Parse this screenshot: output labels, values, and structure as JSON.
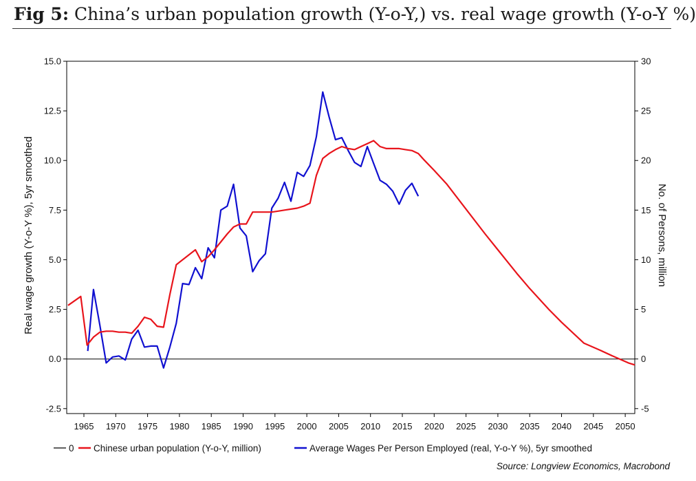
{
  "title": {
    "label": "Fig 5:",
    "text": "China’s urban population growth (Y-o-Y,) vs. real wage growth (Y-o-Y %)"
  },
  "source": "Source: Longview Economics, Macrobond",
  "chart_data": {
    "type": "line",
    "title": "Fig 5: China’s urban population growth (Y-o-Y,) vs. real wage growth (Y-o-Y %)",
    "ylabel_left": "Real wage growth (Y-o-Y %), 5yr smoothed",
    "ylabel_right": "No. of Persons, million",
    "xlim": [
      1962.3,
      2051.5
    ],
    "ylim_left": [
      -2.75,
      15.0
    ],
    "ylim_right": [
      -5.5,
      30.0
    ],
    "x_ticks": [
      "1965",
      "1970",
      "1975",
      "1980",
      "1985",
      "1990",
      "1995",
      "2000",
      "2005",
      "2010",
      "2015",
      "2020",
      "2025",
      "2030",
      "2035",
      "2040",
      "2045",
      "2050"
    ],
    "y_ticks_left": [
      "-2.5",
      "0.0",
      "2.5",
      "5.0",
      "7.5",
      "10.0",
      "12.5",
      "15.0"
    ],
    "y_ticks_right": [
      "-5",
      "0",
      "5",
      "10",
      "15",
      "20",
      "25",
      "30"
    ],
    "grid": false,
    "legend_position": "bottom",
    "legend": [
      {
        "label": "0",
        "color": "#000000"
      },
      {
        "label": "Chinese urban population (Y-o-Y, million)",
        "color": "#e8141b"
      },
      {
        "label": "Average Wages Per Person Employed (real, Y-o-Y %), 5yr smoothed",
        "color": "#1010d0"
      }
    ],
    "series": [
      {
        "name": "Chinese urban population (Y-o-Y, million)",
        "axis": "right",
        "color": "#e8141b",
        "x": [
          1962.5,
          1964.5,
          1965.5,
          1966.5,
          1967.5,
          1968.5,
          1969.5,
          1970.5,
          1971.5,
          1972.5,
          1973.5,
          1974.5,
          1975.5,
          1976.5,
          1977.5,
          1978.5,
          1979.5,
          1980.5,
          1981.5,
          1982.5,
          1983.5,
          1984.5,
          1985.5,
          1986.5,
          1987.5,
          1988.5,
          1989.5,
          1990.5,
          1991.5,
          1992.5,
          1993.5,
          1994.5,
          1995.5,
          1996.5,
          1997.5,
          1998.5,
          1999.5,
          2000.5,
          2001.5,
          2002.5,
          2003.5,
          2004.5,
          2005.5,
          2006.5,
          2007.5,
          2008.5,
          2009.5,
          2010.5,
          2011.5,
          2012.5,
          2013.5,
          2014.5,
          2015.5,
          2016.5,
          2017.5,
          2018.5,
          2020,
          2022,
          2025,
          2028,
          2030,
          2033,
          2035,
          2038,
          2040,
          2043.5,
          2046,
          2048,
          2050.5,
          2051.5
        ],
        "y": [
          5.4,
          6.3,
          1.4,
          2.2,
          2.7,
          2.8,
          2.8,
          2.7,
          2.7,
          2.6,
          3.3,
          4.2,
          4.0,
          3.3,
          3.2,
          6.5,
          9.5,
          10.0,
          10.5,
          11.0,
          9.8,
          10.3,
          11.0,
          11.8,
          12.6,
          13.3,
          13.6,
          13.6,
          14.8,
          14.8,
          14.8,
          14.8,
          14.9,
          15.0,
          15.1,
          15.2,
          15.4,
          15.7,
          18.5,
          20.2,
          20.7,
          21.1,
          21.4,
          21.2,
          21.1,
          21.4,
          21.7,
          22.0,
          21.4,
          21.2,
          21.2,
          21.2,
          21.1,
          21.0,
          20.7,
          20.0,
          19.0,
          17.6,
          15.1,
          12.6,
          11.0,
          8.6,
          7.1,
          5.0,
          3.7,
          1.6,
          0.9,
          0.3,
          -0.4,
          -0.6
        ]
      },
      {
        "name": "Average Wages Per Person Employed (real, Y-o-Y %), 5yr smoothed",
        "axis": "left",
        "color": "#1010d0",
        "x": [
          1965.6,
          1966.5,
          1967.5,
          1968.5,
          1969.5,
          1970.5,
          1971.5,
          1972.5,
          1973.5,
          1974.5,
          1975.5,
          1976.5,
          1977.5,
          1978.5,
          1979.5,
          1980.5,
          1981.5,
          1982.5,
          1983.5,
          1984.5,
          1985.5,
          1986.5,
          1987.5,
          1988.5,
          1989.5,
          1990.5,
          1991.5,
          1992.5,
          1993.5,
          1994.5,
          1995.5,
          1996.5,
          1997.5,
          1998.5,
          1999.5,
          2000.5,
          2001.5,
          2002.5,
          2003.5,
          2004.5,
          2005.5,
          2006.5,
          2007.5,
          2008.5,
          2009.5,
          2010.5,
          2011.5,
          2012.5,
          2013.5,
          2014.5,
          2015.5,
          2016.5,
          2017.5
        ],
        "y": [
          0.4,
          3.5,
          1.7,
          -0.2,
          0.1,
          0.15,
          -0.05,
          1.0,
          1.45,
          0.6,
          0.65,
          0.65,
          -0.45,
          0.6,
          1.8,
          3.8,
          3.75,
          4.6,
          4.05,
          5.6,
          5.1,
          7.5,
          7.7,
          8.8,
          6.6,
          6.2,
          4.4,
          4.95,
          5.3,
          7.6,
          8.1,
          8.9,
          7.95,
          9.4,
          9.2,
          9.75,
          11.2,
          13.45,
          12.2,
          11.05,
          11.15,
          10.5,
          9.9,
          9.7,
          10.7,
          9.85,
          9.0,
          8.8,
          8.45,
          7.8,
          8.5,
          8.85,
          8.2
        ]
      },
      {
        "name": "0",
        "axis": "left",
        "color": "#000000",
        "x": [
          1962.3,
          2051.5
        ],
        "y": [
          0,
          0
        ]
      }
    ]
  }
}
